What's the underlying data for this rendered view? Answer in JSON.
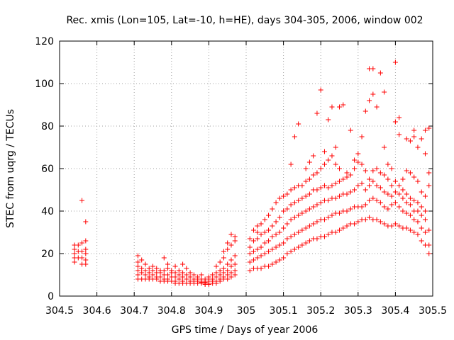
{
  "chart_data": {
    "type": "scatter",
    "title": "Rec. xmis (Lon=105, Lat=-10, h=HE), days 304-305, 2006, window 002",
    "xlabel": "GPS time / Days of year 2006",
    "ylabel": "STEC from uqrg / TECUs",
    "xlim": [
      304.5,
      305.5
    ],
    "ylim": [
      0,
      120
    ],
    "xticks": [
      "304.5",
      "304.6",
      "304.7",
      "304.8",
      "304.9",
      "305",
      "305.1",
      "305.2",
      "305.3",
      "305.4",
      "305.5"
    ],
    "yticks": [
      "0",
      "20",
      "40",
      "60",
      "80",
      "100",
      "120"
    ],
    "grid": true,
    "marker": "+",
    "color": "#ff0000",
    "points": [
      [
        304.54,
        16
      ],
      [
        304.54,
        18
      ],
      [
        304.54,
        20
      ],
      [
        304.54,
        22
      ],
      [
        304.54,
        24
      ],
      [
        304.55,
        18
      ],
      [
        304.55,
        21
      ],
      [
        304.55,
        24
      ],
      [
        304.56,
        15
      ],
      [
        304.56,
        18
      ],
      [
        304.56,
        21
      ],
      [
        304.56,
        25
      ],
      [
        304.56,
        45
      ],
      [
        304.57,
        15
      ],
      [
        304.57,
        17
      ],
      [
        304.57,
        20
      ],
      [
        304.57,
        22
      ],
      [
        304.57,
        26
      ],
      [
        304.57,
        35
      ],
      [
        304.71,
        8
      ],
      [
        304.71,
        10
      ],
      [
        304.71,
        12
      ],
      [
        304.71,
        14
      ],
      [
        304.71,
        16
      ],
      [
        304.71,
        19
      ],
      [
        304.72,
        8
      ],
      [
        304.72,
        11
      ],
      [
        304.72,
        13
      ],
      [
        304.72,
        17
      ],
      [
        304.73,
        8
      ],
      [
        304.73,
        10
      ],
      [
        304.73,
        12
      ],
      [
        304.73,
        15
      ],
      [
        304.74,
        8
      ],
      [
        304.74,
        9
      ],
      [
        304.74,
        11
      ],
      [
        304.74,
        13
      ],
      [
        304.75,
        8
      ],
      [
        304.75,
        10
      ],
      [
        304.75,
        12
      ],
      [
        304.75,
        14
      ],
      [
        304.76,
        8
      ],
      [
        304.76,
        9
      ],
      [
        304.76,
        11
      ],
      [
        304.76,
        13
      ],
      [
        304.77,
        7
      ],
      [
        304.77,
        9
      ],
      [
        304.77,
        11
      ],
      [
        304.77,
        12
      ],
      [
        304.78,
        7
      ],
      [
        304.78,
        8
      ],
      [
        304.78,
        10
      ],
      [
        304.78,
        12
      ],
      [
        304.78,
        18
      ],
      [
        304.79,
        7
      ],
      [
        304.79,
        8
      ],
      [
        304.79,
        10
      ],
      [
        304.79,
        13
      ],
      [
        304.79,
        15
      ],
      [
        304.8,
        7
      ],
      [
        304.8,
        9
      ],
      [
        304.8,
        11
      ],
      [
        304.8,
        12
      ],
      [
        304.81,
        6
      ],
      [
        304.81,
        7
      ],
      [
        304.81,
        9
      ],
      [
        304.81,
        11
      ],
      [
        304.81,
        14
      ],
      [
        304.82,
        6
      ],
      [
        304.82,
        8
      ],
      [
        304.82,
        10
      ],
      [
        304.82,
        12
      ],
      [
        304.83,
        6
      ],
      [
        304.83,
        7
      ],
      [
        304.83,
        9
      ],
      [
        304.83,
        11
      ],
      [
        304.83,
        15
      ],
      [
        304.84,
        6
      ],
      [
        304.84,
        8
      ],
      [
        304.84,
        10
      ],
      [
        304.84,
        13
      ],
      [
        304.85,
        6
      ],
      [
        304.85,
        7
      ],
      [
        304.85,
        9
      ],
      [
        304.85,
        11
      ],
      [
        304.86,
        6
      ],
      [
        304.86,
        7
      ],
      [
        304.86,
        8
      ],
      [
        304.86,
        10
      ],
      [
        304.87,
        6
      ],
      [
        304.87,
        7
      ],
      [
        304.87,
        8
      ],
      [
        304.87,
        9
      ],
      [
        304.88,
        6
      ],
      [
        304.88,
        6.5
      ],
      [
        304.88,
        7
      ],
      [
        304.88,
        8
      ],
      [
        304.88,
        10
      ],
      [
        304.89,
        5.5
      ],
      [
        304.89,
        6
      ],
      [
        304.89,
        6.5
      ],
      [
        304.89,
        7
      ],
      [
        304.89,
        8
      ],
      [
        304.9,
        5.5
      ],
      [
        304.9,
        6
      ],
      [
        304.9,
        7
      ],
      [
        304.9,
        8
      ],
      [
        304.9,
        9
      ],
      [
        304.91,
        6
      ],
      [
        304.91,
        7
      ],
      [
        304.91,
        8
      ],
      [
        304.91,
        10
      ],
      [
        304.92,
        6
      ],
      [
        304.92,
        7
      ],
      [
        304.92,
        9
      ],
      [
        304.92,
        11
      ],
      [
        304.92,
        14
      ],
      [
        304.93,
        7
      ],
      [
        304.93,
        8
      ],
      [
        304.93,
        10
      ],
      [
        304.93,
        12
      ],
      [
        304.93,
        16
      ],
      [
        304.94,
        8
      ],
      [
        304.94,
        9
      ],
      [
        304.94,
        11
      ],
      [
        304.94,
        13
      ],
      [
        304.94,
        18
      ],
      [
        304.94,
        21
      ],
      [
        304.95,
        8
      ],
      [
        304.95,
        10
      ],
      [
        304.95,
        12
      ],
      [
        304.95,
        15
      ],
      [
        304.95,
        22
      ],
      [
        304.95,
        25
      ],
      [
        304.96,
        9
      ],
      [
        304.96,
        11
      ],
      [
        304.96,
        14
      ],
      [
        304.96,
        17
      ],
      [
        304.96,
        24
      ],
      [
        304.96,
        29
      ],
      [
        304.97,
        10
      ],
      [
        304.97,
        12
      ],
      [
        304.97,
        15
      ],
      [
        304.97,
        19
      ],
      [
        304.97,
        26
      ],
      [
        304.97,
        28
      ],
      [
        305.01,
        12
      ],
      [
        305.01,
        16
      ],
      [
        305.01,
        20
      ],
      [
        305.01,
        23
      ],
      [
        305.01,
        27
      ],
      [
        305.02,
        13
      ],
      [
        305.02,
        17
      ],
      [
        305.02,
        21
      ],
      [
        305.02,
        26
      ],
      [
        305.02,
        31
      ],
      [
        305.03,
        13
      ],
      [
        305.03,
        18
      ],
      [
        305.03,
        22
      ],
      [
        305.03,
        27
      ],
      [
        305.03,
        30
      ],
      [
        305.03,
        33
      ],
      [
        305.04,
        13
      ],
      [
        305.04,
        19
      ],
      [
        305.04,
        23
      ],
      [
        305.04,
        29
      ],
      [
        305.04,
        34
      ],
      [
        305.05,
        14
      ],
      [
        305.05,
        20
      ],
      [
        305.05,
        25
      ],
      [
        305.05,
        30
      ],
      [
        305.05,
        36
      ],
      [
        305.06,
        14
      ],
      [
        305.06,
        21
      ],
      [
        305.06,
        26
      ],
      [
        305.06,
        31
      ],
      [
        305.06,
        38
      ],
      [
        305.07,
        15
      ],
      [
        305.07,
        22
      ],
      [
        305.07,
        28
      ],
      [
        305.07,
        33
      ],
      [
        305.07,
        41
      ],
      [
        305.08,
        16
      ],
      [
        305.08,
        23
      ],
      [
        305.08,
        29
      ],
      [
        305.08,
        35
      ],
      [
        305.08,
        44
      ],
      [
        305.09,
        17
      ],
      [
        305.09,
        24
      ],
      [
        305.09,
        30
      ],
      [
        305.09,
        37
      ],
      [
        305.09,
        46
      ],
      [
        305.1,
        18
      ],
      [
        305.1,
        25
      ],
      [
        305.1,
        32
      ],
      [
        305.1,
        40
      ],
      [
        305.1,
        47
      ],
      [
        305.11,
        20
      ],
      [
        305.11,
        27
      ],
      [
        305.11,
        34
      ],
      [
        305.11,
        41
      ],
      [
        305.11,
        48
      ],
      [
        305.12,
        21
      ],
      [
        305.12,
        28
      ],
      [
        305.12,
        36
      ],
      [
        305.12,
        43
      ],
      [
        305.12,
        50
      ],
      [
        305.12,
        62
      ],
      [
        305.13,
        22
      ],
      [
        305.13,
        29
      ],
      [
        305.13,
        37
      ],
      [
        305.13,
        44
      ],
      [
        305.13,
        51
      ],
      [
        305.13,
        75
      ],
      [
        305.14,
        23
      ],
      [
        305.14,
        30
      ],
      [
        305.14,
        38
      ],
      [
        305.14,
        45
      ],
      [
        305.14,
        52
      ],
      [
        305.14,
        81
      ],
      [
        305.15,
        24
      ],
      [
        305.15,
        31
      ],
      [
        305.15,
        39
      ],
      [
        305.15,
        46
      ],
      [
        305.15,
        52
      ],
      [
        305.16,
        25
      ],
      [
        305.16,
        32
      ],
      [
        305.16,
        40
      ],
      [
        305.16,
        47
      ],
      [
        305.16,
        54
      ],
      [
        305.16,
        60
      ],
      [
        305.17,
        26
      ],
      [
        305.17,
        33
      ],
      [
        305.17,
        41
      ],
      [
        305.17,
        48
      ],
      [
        305.17,
        55
      ],
      [
        305.17,
        63
      ],
      [
        305.18,
        27
      ],
      [
        305.18,
        34
      ],
      [
        305.18,
        42
      ],
      [
        305.18,
        50
      ],
      [
        305.18,
        57
      ],
      [
        305.18,
        66
      ],
      [
        305.19,
        27
      ],
      [
        305.19,
        35
      ],
      [
        305.19,
        43
      ],
      [
        305.19,
        50
      ],
      [
        305.19,
        58
      ],
      [
        305.19,
        86
      ],
      [
        305.2,
        28
      ],
      [
        305.2,
        36
      ],
      [
        305.2,
        44
      ],
      [
        305.2,
        51
      ],
      [
        305.2,
        60
      ],
      [
        305.2,
        97
      ],
      [
        305.21,
        28
      ],
      [
        305.21,
        36
      ],
      [
        305.21,
        45
      ],
      [
        305.21,
        52
      ],
      [
        305.21,
        62
      ],
      [
        305.21,
        68
      ],
      [
        305.22,
        29
      ],
      [
        305.22,
        37
      ],
      [
        305.22,
        45
      ],
      [
        305.22,
        51
      ],
      [
        305.22,
        64
      ],
      [
        305.22,
        83
      ],
      [
        305.23,
        30
      ],
      [
        305.23,
        38
      ],
      [
        305.23,
        46
      ],
      [
        305.23,
        52
      ],
      [
        305.23,
        66
      ],
      [
        305.23,
        89
      ],
      [
        305.24,
        30
      ],
      [
        305.24,
        39
      ],
      [
        305.24,
        46
      ],
      [
        305.24,
        53
      ],
      [
        305.24,
        62
      ],
      [
        305.24,
        70
      ],
      [
        305.25,
        31
      ],
      [
        305.25,
        39
      ],
      [
        305.25,
        47
      ],
      [
        305.25,
        54
      ],
      [
        305.25,
        60
      ],
      [
        305.25,
        89
      ],
      [
        305.26,
        32
      ],
      [
        305.26,
        40
      ],
      [
        305.26,
        48
      ],
      [
        305.26,
        55
      ],
      [
        305.26,
        90
      ],
      [
        305.27,
        33
      ],
      [
        305.27,
        40
      ],
      [
        305.27,
        48
      ],
      [
        305.27,
        56
      ],
      [
        305.27,
        58
      ],
      [
        305.28,
        34
      ],
      [
        305.28,
        41
      ],
      [
        305.28,
        49
      ],
      [
        305.28,
        57
      ],
      [
        305.28,
        78
      ],
      [
        305.29,
        34
      ],
      [
        305.29,
        42
      ],
      [
        305.29,
        50
      ],
      [
        305.29,
        60
      ],
      [
        305.29,
        64
      ],
      [
        305.3,
        35
      ],
      [
        305.3,
        42
      ],
      [
        305.3,
        52
      ],
      [
        305.3,
        63
      ],
      [
        305.3,
        67
      ],
      [
        305.31,
        36
      ],
      [
        305.31,
        42
      ],
      [
        305.31,
        53
      ],
      [
        305.31,
        62
      ],
      [
        305.31,
        75
      ],
      [
        305.32,
        36
      ],
      [
        305.32,
        43
      ],
      [
        305.32,
        50
      ],
      [
        305.32,
        59
      ],
      [
        305.32,
        87
      ],
      [
        305.33,
        37
      ],
      [
        305.33,
        45
      ],
      [
        305.33,
        52
      ],
      [
        305.33,
        55
      ],
      [
        305.33,
        92
      ],
      [
        305.33,
        107
      ],
      [
        305.34,
        36
      ],
      [
        305.34,
        46
      ],
      [
        305.34,
        54
      ],
      [
        305.34,
        59
      ],
      [
        305.34,
        95
      ],
      [
        305.34,
        107
      ],
      [
        305.35,
        36
      ],
      [
        305.35,
        45
      ],
      [
        305.35,
        52
      ],
      [
        305.35,
        60
      ],
      [
        305.35,
        89
      ],
      [
        305.36,
        35
      ],
      [
        305.36,
        44
      ],
      [
        305.36,
        51
      ],
      [
        305.36,
        58
      ],
      [
        305.36,
        105
      ],
      [
        305.37,
        34
      ],
      [
        305.37,
        42
      ],
      [
        305.37,
        49
      ],
      [
        305.37,
        57
      ],
      [
        305.37,
        70
      ],
      [
        305.37,
        96
      ],
      [
        305.38,
        33
      ],
      [
        305.38,
        41
      ],
      [
        305.38,
        48
      ],
      [
        305.38,
        55
      ],
      [
        305.38,
        62
      ],
      [
        305.39,
        33
      ],
      [
        305.39,
        43
      ],
      [
        305.39,
        47
      ],
      [
        305.39,
        52
      ],
      [
        305.39,
        60
      ],
      [
        305.4,
        34
      ],
      [
        305.4,
        44
      ],
      [
        305.4,
        49
      ],
      [
        305.4,
        54
      ],
      [
        305.4,
        82
      ],
      [
        305.4,
        110
      ],
      [
        305.41,
        33
      ],
      [
        305.41,
        42
      ],
      [
        305.41,
        48
      ],
      [
        305.41,
        52
      ],
      [
        305.41,
        76
      ],
      [
        305.41,
        84
      ],
      [
        305.42,
        32
      ],
      [
        305.42,
        40
      ],
      [
        305.42,
        46
      ],
      [
        305.42,
        50
      ],
      [
        305.42,
        55
      ],
      [
        305.43,
        32
      ],
      [
        305.43,
        39
      ],
      [
        305.43,
        44
      ],
      [
        305.43,
        48
      ],
      [
        305.43,
        59
      ],
      [
        305.43,
        74
      ],
      [
        305.44,
        31
      ],
      [
        305.44,
        38
      ],
      [
        305.44,
        43
      ],
      [
        305.44,
        46
      ],
      [
        305.44,
        58
      ],
      [
        305.44,
        73
      ],
      [
        305.45,
        30
      ],
      [
        305.45,
        36
      ],
      [
        305.45,
        40
      ],
      [
        305.45,
        45
      ],
      [
        305.45,
        56
      ],
      [
        305.45,
        75
      ],
      [
        305.45,
        78
      ],
      [
        305.46,
        29
      ],
      [
        305.46,
        35
      ],
      [
        305.46,
        40
      ],
      [
        305.46,
        44
      ],
      [
        305.46,
        54
      ],
      [
        305.46,
        70
      ],
      [
        305.47,
        26
      ],
      [
        305.47,
        32
      ],
      [
        305.47,
        38
      ],
      [
        305.47,
        42
      ],
      [
        305.47,
        49
      ],
      [
        305.47,
        74
      ],
      [
        305.48,
        24
      ],
      [
        305.48,
        30
      ],
      [
        305.48,
        36
      ],
      [
        305.48,
        40
      ],
      [
        305.48,
        47
      ],
      [
        305.48,
        67
      ],
      [
        305.48,
        78
      ],
      [
        305.49,
        20
      ],
      [
        305.49,
        24
      ],
      [
        305.49,
        31
      ],
      [
        305.49,
        52
      ],
      [
        305.49,
        58
      ],
      [
        305.49,
        79
      ]
    ]
  }
}
